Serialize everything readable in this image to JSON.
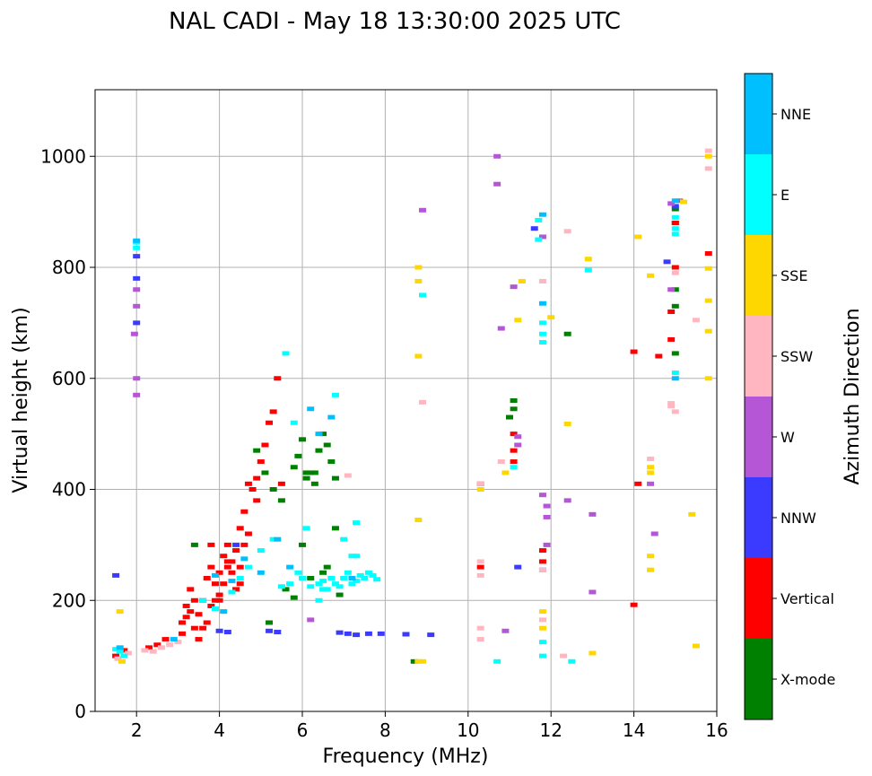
{
  "chart_data": {
    "type": "scatter",
    "title": "NAL CADI - May 18 13:30:00 2025 UTC",
    "xlabel": "Frequency (MHz)",
    "ylabel": "Virtual height (km)",
    "xlim": [
      1,
      16
    ],
    "ylim": [
      0,
      1120
    ],
    "xticks": [
      2,
      4,
      6,
      8,
      10,
      12,
      14,
      16
    ],
    "yticks": [
      0,
      200,
      400,
      600,
      800,
      1000
    ],
    "grid": true,
    "colorbar": {
      "label": "Azimuth Direction",
      "categories": [
        "X-mode",
        "Vertical",
        "NNW",
        "W",
        "SSW",
        "SSE",
        "E",
        "NNE"
      ],
      "colors": [
        "#008000",
        "#ff0000",
        "#3b3bff",
        "#b556d6",
        "#ffb6c1",
        "#ffd700",
        "#00ffff",
        "#00bfff"
      ]
    },
    "series": [
      {
        "name": "X-mode",
        "color": "#008000",
        "x": [
          3.4,
          4.9,
          5.1,
          5.3,
          5.5,
          5.8,
          5.9,
          6.0,
          6.1,
          6.2,
          6.3,
          6.4,
          6.5,
          6.6,
          6.7,
          6.8,
          6.0,
          6.2,
          6.5,
          5.2,
          5.6,
          6.6,
          6.9,
          8.7,
          11.1,
          11.1,
          11.0,
          12.4,
          15.0,
          15.0,
          15.0,
          15.0,
          15.0,
          6.3,
          6.8,
          5.8,
          6.1
        ],
        "y": [
          300,
          470,
          430,
          400,
          380,
          440,
          460,
          490,
          420,
          430,
          410,
          470,
          500,
          480,
          450,
          330,
          300,
          240,
          250,
          160,
          220,
          260,
          210,
          90,
          560,
          545,
          530,
          680,
          760,
          730,
          880,
          905,
          645,
          430,
          420,
          205,
          430
        ]
      },
      {
        "name": "Vertical",
        "color": "#ff0000",
        "x": [
          1.5,
          1.7,
          2.3,
          2.5,
          2.7,
          3.1,
          3.2,
          3.3,
          3.4,
          3.5,
          3.6,
          3.7,
          3.8,
          3.9,
          4.0,
          4.1,
          4.2,
          4.3,
          4.4,
          4.5,
          4.6,
          4.7,
          4.8,
          4.9,
          5.0,
          5.1,
          5.2,
          5.3,
          5.4,
          3.1,
          3.3,
          3.5,
          3.7,
          3.9,
          4.1,
          4.3,
          4.5,
          4.7,
          3.2,
          3.4,
          3.6,
          3.8,
          4.0,
          4.2,
          4.4,
          4.6,
          3.8,
          4.0,
          4.2,
          4.5,
          4.9,
          5.5,
          10.3,
          10.3,
          11.1,
          11.1,
          11.1,
          11.8,
          11.8,
          14.0,
          14.0,
          14.1,
          14.6,
          14.9,
          14.9,
          15.0,
          15.0,
          15.8
        ],
        "y": [
          100,
          110,
          115,
          120,
          130,
          160,
          190,
          220,
          150,
          175,
          200,
          240,
          260,
          230,
          210,
          280,
          300,
          250,
          290,
          330,
          360,
          410,
          400,
          420,
          450,
          480,
          520,
          540,
          600,
          140,
          180,
          130,
          160,
          200,
          230,
          270,
          260,
          320,
          170,
          200,
          150,
          190,
          250,
          270,
          220,
          300,
          300,
          200,
          260,
          230,
          380,
          410,
          410,
          260,
          450,
          500,
          470,
          290,
          270,
          648,
          192,
          410,
          640,
          670,
          720,
          880,
          800,
          825
        ]
      },
      {
        "name": "NNW",
        "color": "#3b3bff",
        "x": [
          1.5,
          2.0,
          2.0,
          2.0,
          4.0,
          4.2,
          5.2,
          5.4,
          6.9,
          7.1,
          7.3,
          7.6,
          7.9,
          8.5,
          9.1,
          11.2,
          11.6,
          11.8,
          14.8,
          15.0,
          4.4
        ],
        "y": [
          245,
          820,
          780,
          700,
          145,
          143,
          145,
          143,
          142,
          140,
          138,
          140,
          140,
          139,
          138,
          260,
          870,
          255,
          810,
          910,
          300
        ]
      },
      {
        "name": "W",
        "color": "#b556d6",
        "x": [
          2.0,
          2.0,
          2.0,
          1.95,
          2.0,
          6.2,
          8.9,
          10.7,
          10.7,
          10.8,
          10.9,
          11.1,
          11.2,
          11.2,
          11.8,
          11.8,
          11.9,
          11.9,
          11.9,
          12.4,
          13.0,
          13.0,
          14.4,
          14.9,
          14.9,
          15.1,
          14.5
        ],
        "y": [
          760,
          730,
          600,
          680,
          570,
          165,
          903,
          1000,
          950,
          690,
          145,
          765,
          480,
          495,
          855,
          390,
          370,
          350,
          300,
          380,
          215,
          355,
          410,
          915,
          760,
          920,
          320
        ]
      },
      {
        "name": "SSW",
        "color": "#ffb6c1",
        "x": [
          1.55,
          1.8,
          2.2,
          2.4,
          2.6,
          2.8,
          3.0,
          7.1,
          8.9,
          10.3,
          10.3,
          10.3,
          10.3,
          10.8,
          11.8,
          11.8,
          11.8,
          12.3,
          12.4,
          14.4,
          14.9,
          15.0,
          15.0,
          15.5,
          15.8,
          15.8,
          14.9,
          10.3
        ],
        "y": [
          95,
          105,
          110,
          108,
          115,
          120,
          125,
          425,
          557,
          270,
          150,
          130,
          245,
          450,
          775,
          255,
          165,
          100,
          865,
          455,
          555,
          540,
          790,
          705,
          1010,
          978,
          550,
          410
        ]
      },
      {
        "name": "SSE",
        "color": "#ffd700",
        "x": [
          1.6,
          1.65,
          8.8,
          8.8,
          8.8,
          8.8,
          8.9,
          8.8,
          10.3,
          10.9,
          11.2,
          11.3,
          11.8,
          11.8,
          12.0,
          12.4,
          12.9,
          13.0,
          14.1,
          14.4,
          14.4,
          14.4,
          14.4,
          14.4,
          15.2,
          15.4,
          15.5,
          15.8,
          15.8,
          15.8,
          15.8,
          15.8
        ],
        "y": [
          180,
          90,
          800,
          775,
          640,
          345,
          90,
          90,
          400,
          430,
          705,
          775,
          180,
          150,
          710,
          518,
          815,
          105,
          855,
          785,
          440,
          430,
          280,
          255,
          918,
          355,
          118,
          1000,
          798,
          740,
          685,
          600
        ]
      },
      {
        "name": "E",
        "color": "#00ffff",
        "x": [
          1.5,
          1.6,
          1.7,
          2.0,
          2.0,
          3.6,
          3.9,
          4.3,
          4.5,
          4.7,
          5.0,
          5.3,
          5.5,
          5.7,
          5.9,
          6.0,
          6.2,
          6.4,
          6.5,
          6.6,
          6.7,
          6.8,
          6.9,
          7.0,
          7.1,
          7.2,
          7.3,
          7.4,
          7.5,
          7.6,
          7.7,
          7.8,
          5.6,
          5.8,
          6.1,
          6.4,
          6.8,
          7.0,
          7.2,
          7.3,
          8.9,
          10.7,
          11.1,
          11.7,
          11.7,
          11.8,
          11.8,
          11.8,
          11.8,
          11.8,
          12.5,
          12.9,
          15.0,
          15.0,
          15.0,
          15.0,
          6.5,
          7.3
        ],
        "y": [
          112,
          108,
          100,
          835,
          845,
          200,
          185,
          215,
          240,
          260,
          290,
          310,
          225,
          230,
          250,
          240,
          225,
          230,
          235,
          220,
          240,
          230,
          225,
          240,
          250,
          230,
          235,
          245,
          240,
          250,
          245,
          238,
          645,
          520,
          330,
          200,
          570,
          310,
          280,
          340,
          750,
          90,
          440,
          885,
          850,
          700,
          680,
          665,
          125,
          100,
          90,
          795,
          610,
          890,
          860,
          870,
          220,
          280
        ]
      },
      {
        "name": "NNE",
        "color": "#00bfff",
        "x": [
          2.0,
          3.9,
          4.1,
          4.3,
          4.6,
          5.0,
          5.4,
          5.7,
          6.2,
          6.4,
          6.7,
          7.2,
          11.8,
          11.8,
          15.0,
          15.0,
          1.6,
          2.9
        ],
        "y": [
          848,
          245,
          180,
          235,
          275,
          250,
          310,
          260,
          545,
          500,
          530,
          240,
          895,
          735,
          920,
          600,
          115,
          130
        ]
      }
    ]
  }
}
